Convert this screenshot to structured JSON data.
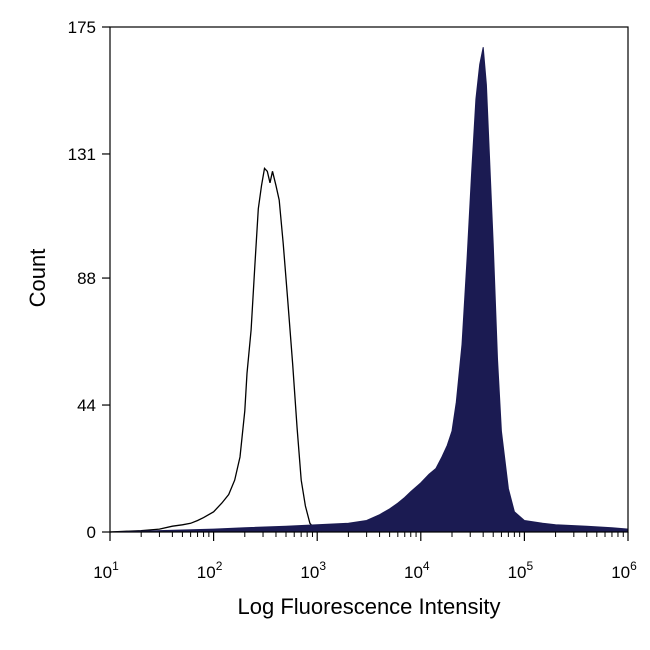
{
  "chart_data": {
    "type": "area",
    "title": "",
    "xlabel": "Log Fluorescence Intensity",
    "ylabel": "Count",
    "x_scale": "log",
    "xlim": [
      10,
      1000000
    ],
    "ylim": [
      0,
      175
    ],
    "grid": false,
    "legend": "none",
    "x_ticks": [
      {
        "value": 10,
        "base": "10",
        "exp": "1"
      },
      {
        "value": 100,
        "base": "10",
        "exp": "2"
      },
      {
        "value": 1000,
        "base": "10",
        "exp": "3"
      },
      {
        "value": 10000,
        "base": "10",
        "exp": "4"
      },
      {
        "value": 100000,
        "base": "10",
        "exp": "5"
      },
      {
        "value": 1000000,
        "base": "10",
        "exp": "6"
      }
    ],
    "y_ticks": [
      {
        "value": 0,
        "label": "0"
      },
      {
        "value": 44,
        "label": "44"
      },
      {
        "value": 88,
        "label": "88"
      },
      {
        "value": 131,
        "label": "131"
      },
      {
        "value": 175,
        "label": "175"
      }
    ],
    "series": [
      {
        "style": "outline",
        "color": "#000000",
        "points": [
          [
            10,
            0
          ],
          [
            20,
            0.5
          ],
          [
            30,
            1
          ],
          [
            40,
            2
          ],
          [
            50,
            2.5
          ],
          [
            60,
            3
          ],
          [
            70,
            4
          ],
          [
            80,
            5
          ],
          [
            100,
            7
          ],
          [
            120,
            10
          ],
          [
            140,
            13
          ],
          [
            160,
            18
          ],
          [
            180,
            26
          ],
          [
            200,
            42
          ],
          [
            210,
            55
          ],
          [
            230,
            70
          ],
          [
            250,
            92
          ],
          [
            270,
            112
          ],
          [
            290,
            120
          ],
          [
            310,
            126
          ],
          [
            330,
            125
          ],
          [
            350,
            121
          ],
          [
            370,
            125
          ],
          [
            400,
            120
          ],
          [
            430,
            115
          ],
          [
            470,
            100
          ],
          [
            520,
            80
          ],
          [
            580,
            58
          ],
          [
            640,
            36
          ],
          [
            700,
            18
          ],
          [
            770,
            9
          ],
          [
            850,
            3
          ],
          [
            950,
            1
          ],
          [
            1100,
            0
          ]
        ]
      },
      {
        "style": "filled",
        "color": "#1b1b52",
        "points": [
          [
            10,
            0
          ],
          [
            30,
            0.5
          ],
          [
            100,
            1
          ],
          [
            200,
            1.5
          ],
          [
            500,
            2
          ],
          [
            1000,
            2.5
          ],
          [
            2000,
            3
          ],
          [
            3000,
            4
          ],
          [
            4000,
            6
          ],
          [
            5000,
            8
          ],
          [
            6000,
            10
          ],
          [
            7000,
            12
          ],
          [
            8000,
            14
          ],
          [
            10000,
            17
          ],
          [
            12000,
            20
          ],
          [
            14000,
            22
          ],
          [
            16000,
            26
          ],
          [
            18000,
            30
          ],
          [
            20000,
            35
          ],
          [
            22000,
            45
          ],
          [
            25000,
            65
          ],
          [
            28000,
            95
          ],
          [
            31000,
            125
          ],
          [
            34000,
            150
          ],
          [
            37000,
            162
          ],
          [
            40000,
            168
          ],
          [
            43000,
            155
          ],
          [
            46000,
            130
          ],
          [
            50000,
            100
          ],
          [
            55000,
            60
          ],
          [
            60000,
            35
          ],
          [
            70000,
            15
          ],
          [
            80000,
            7
          ],
          [
            100000,
            4
          ],
          [
            150000,
            3
          ],
          [
            200000,
            2.5
          ],
          [
            400000,
            2
          ],
          [
            700000,
            1.5
          ],
          [
            1000000,
            1
          ]
        ]
      }
    ]
  }
}
